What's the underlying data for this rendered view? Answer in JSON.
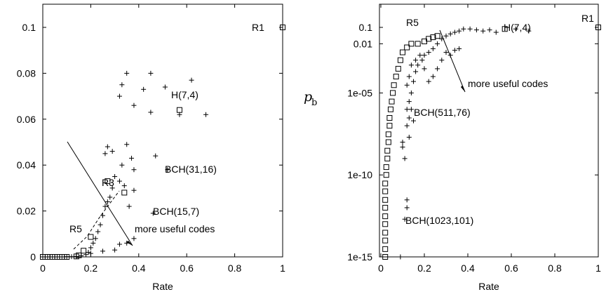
{
  "chart_data": [
    {
      "type": "scatter",
      "xlabel": "Rate",
      "ylabel": "",
      "xlim": [
        0,
        1
      ],
      "ylim": [
        0,
        0.1
      ],
      "xticks": [
        "0",
        "0.2",
        "0.4",
        "0.6",
        "0.8",
        "1"
      ],
      "yticks": [
        "0",
        "0.02",
        "0.04",
        "0.06",
        "0.08",
        "0.1"
      ],
      "grid": false,
      "series": [
        {
          "marker": "plus",
          "points": [
            [
              0.0,
              0.0
            ],
            [
              0.01,
              0.0
            ],
            [
              0.02,
              0.0
            ],
            [
              0.03,
              0.0
            ],
            [
              0.04,
              0.0
            ],
            [
              0.05,
              0.0
            ],
            [
              0.06,
              0.0
            ],
            [
              0.08,
              0.0
            ],
            [
              0.1,
              0.0001
            ],
            [
              0.12,
              0.0001
            ],
            [
              0.14,
              0.0002
            ],
            [
              0.16,
              0.0005
            ],
            [
              0.18,
              0.001
            ],
            [
              0.19,
              0.002
            ],
            [
              0.2,
              0.004
            ],
            [
              0.21,
              0.006
            ],
            [
              0.22,
              0.008
            ],
            [
              0.23,
              0.011
            ],
            [
              0.24,
              0.014
            ],
            [
              0.25,
              0.018
            ],
            [
              0.26,
              0.022
            ],
            [
              0.27,
              0.024
            ],
            [
              0.28,
              0.026
            ],
            [
              0.29,
              0.03
            ],
            [
              0.3,
              0.035
            ],
            [
              0.32,
              0.033
            ],
            [
              0.34,
              0.031
            ],
            [
              0.36,
              0.022
            ],
            [
              0.38,
              0.029
            ],
            [
              0.26,
              0.045
            ],
            [
              0.27,
              0.048
            ],
            [
              0.29,
              0.046
            ],
            [
              0.33,
              0.04
            ],
            [
              0.35,
              0.049
            ],
            [
              0.38,
              0.038
            ],
            [
              0.37,
              0.043
            ],
            [
              0.47,
              0.044
            ],
            [
              0.32,
              0.07
            ],
            [
              0.33,
              0.075
            ],
            [
              0.35,
              0.08
            ],
            [
              0.38,
              0.066
            ],
            [
              0.42,
              0.073
            ],
            [
              0.45,
              0.063
            ],
            [
              0.45,
              0.08
            ],
            [
              0.51,
              0.074
            ],
            [
              0.57,
              0.062
            ],
            [
              0.62,
              0.077
            ],
            [
              0.68,
              0.062
            ],
            [
              0.52,
              0.038
            ],
            [
              0.46,
              0.019
            ],
            [
              0.2,
              0.0015
            ],
            [
              0.25,
              0.0025
            ],
            [
              0.3,
              0.003
            ],
            [
              0.35,
              0.006
            ],
            [
              0.38,
              0.008
            ],
            [
              0.32,
              0.0055
            ]
          ]
        },
        {
          "marker": "square",
          "points": [
            [
              0.0,
              0.0
            ],
            [
              0.02,
              0.0
            ],
            [
              0.04,
              0.0
            ],
            [
              0.06,
              0.0
            ],
            [
              0.08,
              0.0
            ],
            [
              0.1,
              0.0
            ],
            [
              0.14,
              0.0002
            ],
            [
              0.15,
              0.0007
            ],
            [
              0.17,
              0.0027
            ],
            [
              0.2,
              0.0087
            ],
            [
              0.27,
              0.033
            ],
            [
              0.34,
              0.028
            ],
            [
              0.57,
              0.064
            ],
            [
              1.0,
              0.1
            ]
          ]
        }
      ],
      "annotations": [
        "R1",
        "H(7,4)",
        "BCH(31,16)",
        "R3",
        "BCH(15,7)",
        "R5",
        "more useful codes"
      ]
    },
    {
      "type": "scatter",
      "xlabel": "Rate",
      "ylabel": "p_b",
      "yscale": "log",
      "xlim": [
        0,
        1
      ],
      "ylim": [
        1e-15,
        0.1
      ],
      "xticks": [
        "0",
        "0.2",
        "0.4",
        "0.6",
        "0.8",
        "1"
      ],
      "yticks": [
        "0.1",
        "0.01",
        "1e-05",
        "1e-10",
        "1e-15"
      ],
      "grid": false,
      "series": [
        {
          "marker": "plus",
          "points": [
            [
              0.09,
              1e-15
            ],
            [
              0.1,
              1e-08
            ],
            [
              0.11,
              2e-13
            ],
            [
              0.12,
              1e-12
            ],
            [
              0.12,
              3e-12
            ],
            [
              0.12,
              1e-06
            ],
            [
              0.13,
              2e-08
            ],
            [
              0.13,
              3e-06
            ],
            [
              0.14,
              1e-05
            ],
            [
              0.15,
              5e-05
            ],
            [
              0.16,
              0.0002
            ],
            [
              0.17,
              0.0005
            ],
            [
              0.19,
              0.001
            ],
            [
              0.2,
              0.002
            ],
            [
              0.22,
              0.003
            ],
            [
              0.24,
              0.005
            ],
            [
              0.26,
              0.01
            ],
            [
              0.28,
              0.02
            ],
            [
              0.3,
              0.03
            ],
            [
              0.32,
              0.04
            ],
            [
              0.34,
              0.05
            ],
            [
              0.36,
              0.06
            ],
            [
              0.38,
              0.08
            ],
            [
              0.41,
              0.08
            ],
            [
              0.44,
              0.07
            ],
            [
              0.47,
              0.06
            ],
            [
              0.5,
              0.07
            ],
            [
              0.53,
              0.05
            ],
            [
              0.62,
              0.08
            ],
            [
              0.68,
              0.06
            ],
            [
              0.2,
              0.0003
            ],
            [
              0.22,
              5e-05
            ],
            [
              0.24,
              0.0001
            ],
            [
              0.26,
              0.0003
            ],
            [
              0.28,
              0.001
            ],
            [
              0.3,
              0.003
            ],
            [
              0.32,
              0.002
            ],
            [
              0.34,
              0.004
            ],
            [
              0.36,
              0.005
            ],
            [
              0.18,
              0.002
            ],
            [
              0.16,
              0.001
            ],
            [
              0.14,
              0.0005
            ],
            [
              0.13,
              0.0001
            ],
            [
              0.12,
              3e-05
            ],
            [
              0.11,
              1e-09
            ],
            [
              0.1,
              5e-09
            ],
            [
              0.12,
              1e-07
            ],
            [
              0.13,
              3e-07
            ],
            [
              0.14,
              1e-06
            ],
            [
              0.15,
              2e-07
            ]
          ]
        },
        {
          "marker": "square",
          "points": [
            [
              0.02,
              1e-15
            ],
            [
              0.02,
              3e-15
            ],
            [
              0.02,
              1e-14
            ],
            [
              0.02,
              3e-14
            ],
            [
              0.02,
              1e-13
            ],
            [
              0.02,
              3e-13
            ],
            [
              0.02,
              1e-12
            ],
            [
              0.02,
              3e-12
            ],
            [
              0.02,
              1e-11
            ],
            [
              0.02,
              3e-11
            ],
            [
              0.025,
              1e-10
            ],
            [
              0.025,
              3e-10
            ],
            [
              0.03,
              1e-09
            ],
            [
              0.03,
              3e-09
            ],
            [
              0.035,
              1e-08
            ],
            [
              0.035,
              3e-08
            ],
            [
              0.04,
              1e-07
            ],
            [
              0.04,
              3e-07
            ],
            [
              0.045,
              1e-06
            ],
            [
              0.05,
              3e-06
            ],
            [
              0.055,
              1e-05
            ],
            [
              0.06,
              3e-05
            ],
            [
              0.07,
              0.0001
            ],
            [
              0.08,
              0.0003
            ],
            [
              0.09,
              0.001
            ],
            [
              0.1,
              0.003
            ],
            [
              0.12,
              0.006
            ],
            [
              0.14,
              0.01
            ],
            [
              0.17,
              0.01
            ],
            [
              0.2,
              0.014
            ],
            [
              0.22,
              0.02
            ],
            [
              0.24,
              0.025
            ],
            [
              0.26,
              0.03
            ],
            [
              0.57,
              0.08
            ],
            [
              1.0,
              0.1
            ]
          ]
        }
      ],
      "annotations": [
        "R1",
        "R5",
        "H(7,4)",
        "more useful codes",
        "BCH(511,76)",
        "BCH(1023,101)"
      ]
    }
  ]
}
